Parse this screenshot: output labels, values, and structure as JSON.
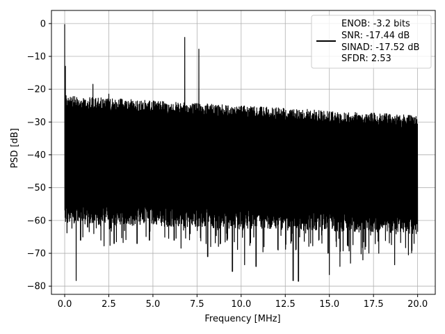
{
  "chart_data": {
    "type": "line",
    "xlabel": "Frequency [MHz]",
    "ylabel": "PSD [dB]",
    "xlim": [
      -0.75,
      21.0
    ],
    "ylim": [
      -82.5,
      4.0
    ],
    "xticks": [
      0.0,
      2.5,
      5.0,
      7.5,
      10.0,
      12.5,
      15.0,
      17.5,
      20.0
    ],
    "xtick_labels": [
      "0.0",
      "2.5",
      "5.0",
      "7.5",
      "10.0",
      "12.5",
      "15.0",
      "17.5",
      "20.0"
    ],
    "yticks": [
      0,
      -10,
      -20,
      -30,
      -40,
      -50,
      -60,
      -70,
      -80
    ],
    "ytick_labels": [
      "0",
      "−10",
      "−20",
      "−30",
      "−40",
      "−50",
      "−60",
      "−70",
      "−80"
    ],
    "grid": true,
    "legend": {
      "placement": "top-right",
      "lines": [
        "ENOB: -3.2 bits",
        "SNR: -17.44 dB",
        "SINAD: -17.52 dB",
        "SFDR: 2.53"
      ]
    },
    "series": [
      {
        "color": "#000000",
        "x_range": [
          0.0,
          20.0
        ],
        "num_points": 2000,
        "noise_band": {
          "upper_start": -22,
          "upper_end": -28,
          "lower_start": -55,
          "lower_end": -58,
          "deep_dips": [
            [
              0.65,
              -78.3
            ],
            [
              0.9,
              -66
            ],
            [
              1.3,
              -62
            ],
            [
              1.65,
              -64
            ],
            [
              2.05,
              -66
            ],
            [
              2.8,
              -67
            ],
            [
              4.1,
              -67
            ],
            [
              4.8,
              -66
            ],
            [
              6.2,
              -66
            ],
            [
              7.1,
              -64
            ],
            [
              8.1,
              -71
            ],
            [
              9.2,
              -66
            ],
            [
              9.5,
              -75.5
            ],
            [
              10.2,
              -73.5
            ],
            [
              10.85,
              -74
            ],
            [
              11.3,
              -68
            ],
            [
              12.1,
              -69
            ],
            [
              12.95,
              -78.3
            ],
            [
              13.25,
              -78.5
            ],
            [
              14.4,
              -66
            ],
            [
              15.0,
              -76.5
            ],
            [
              15.6,
              -74
            ],
            [
              16.2,
              -73
            ],
            [
              16.9,
              -72
            ],
            [
              17.8,
              -70
            ],
            [
              18.7,
              -73.5
            ],
            [
              19.8,
              -67
            ]
          ]
        },
        "peaks": [
          [
            0.0,
            -0.2
          ],
          [
            0.03,
            -13.0
          ],
          [
            0.08,
            -22.0
          ],
          [
            1.6,
            -18.5
          ],
          [
            2.5,
            -21.5
          ],
          [
            6.8,
            -4.2
          ],
          [
            7.6,
            -7.8
          ]
        ]
      }
    ]
  }
}
